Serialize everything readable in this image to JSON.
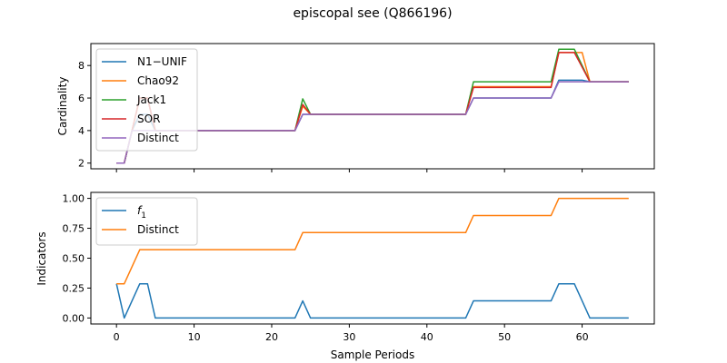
{
  "chart_data": {
    "title": "episcopal see (Q866196)",
    "xlabel": "Sample Periods",
    "xlim": [
      -3.3,
      69.3
    ],
    "xticks": [
      0,
      10,
      20,
      30,
      40,
      50,
      60
    ],
    "panels": [
      {
        "type": "line",
        "ylabel": "Cardinality",
        "ylim": [
          1.65,
          9.35
        ],
        "yticks": [
          2,
          4,
          6,
          8
        ],
        "ytick_labels": [
          "2",
          "4",
          "6",
          "8"
        ],
        "legend_position": "upper left",
        "series": [
          {
            "name": "N1−UNIF",
            "color": "#1f77b4",
            "points": [
              [
                0,
                2
              ],
              [
                1,
                2
              ],
              [
                2,
                4
              ],
              [
                3,
                5
              ],
              [
                4,
                5
              ],
              [
                5,
                4
              ],
              [
                23,
                4
              ],
              [
                24,
                5
              ],
              [
                45,
                5
              ],
              [
                46,
                6
              ],
              [
                56,
                6
              ],
              [
                57,
                7.1
              ],
              [
                60,
                7.1
              ],
              [
                61,
                7
              ],
              [
                66,
                7
              ]
            ]
          },
          {
            "name": "Chao92",
            "color": "#ff7f0e",
            "points": [
              [
                0,
                2
              ],
              [
                1,
                2
              ],
              [
                2,
                4
              ],
              [
                3,
                6
              ],
              [
                4,
                6
              ],
              [
                5,
                4
              ],
              [
                23,
                4
              ],
              [
                24,
                5.5
              ],
              [
                25,
                5
              ],
              [
                45,
                5
              ],
              [
                46,
                6.7
              ],
              [
                56,
                6.7
              ],
              [
                57,
                8.8
              ],
              [
                60,
                8.8
              ],
              [
                61,
                7
              ],
              [
                66,
                7
              ]
            ]
          },
          {
            "name": "Jack1",
            "color": "#2ca02c",
            "points": [
              [
                0,
                2
              ],
              [
                1,
                2
              ],
              [
                2,
                4
              ],
              [
                3,
                6
              ],
              [
                4,
                6
              ],
              [
                5,
                4
              ],
              [
                23,
                4
              ],
              [
                24,
                5.95
              ],
              [
                25,
                5
              ],
              [
                45,
                5
              ],
              [
                46,
                7
              ],
              [
                56,
                7
              ],
              [
                57,
                9
              ],
              [
                59,
                9
              ],
              [
                61,
                7
              ],
              [
                66,
                7
              ]
            ]
          },
          {
            "name": "SOR",
            "color": "#d62728",
            "points": [
              [
                0,
                2
              ],
              [
                1,
                2
              ],
              [
                2,
                4
              ],
              [
                3,
                6
              ],
              [
                4,
                6
              ],
              [
                5,
                4
              ],
              [
                23,
                4
              ],
              [
                24,
                5.6
              ],
              [
                25,
                5
              ],
              [
                45,
                5
              ],
              [
                46,
                6.65
              ],
              [
                56,
                6.65
              ],
              [
                57,
                8.8
              ],
              [
                59,
                8.8
              ],
              [
                61,
                7
              ],
              [
                66,
                7
              ]
            ]
          },
          {
            "name": "Distinct",
            "color": "#9467bd",
            "points": [
              [
                0,
                2
              ],
              [
                1,
                2
              ],
              [
                2,
                4
              ],
              [
                3,
                4
              ],
              [
                5,
                4
              ],
              [
                23,
                4
              ],
              [
                24,
                5
              ],
              [
                45,
                5
              ],
              [
                46,
                6
              ],
              [
                56,
                6
              ],
              [
                57,
                7
              ],
              [
                60,
                7
              ],
              [
                61,
                7
              ],
              [
                66,
                7
              ]
            ]
          }
        ]
      },
      {
        "type": "line",
        "ylabel": "Indicators",
        "ylim": [
          -0.05,
          1.05
        ],
        "yticks": [
          0,
          0.25,
          0.5,
          0.75,
          1.0
        ],
        "ytick_labels": [
          "0.00",
          "0.25",
          "0.50",
          "0.75",
          "1.00"
        ],
        "legend_position": "upper left",
        "series": [
          {
            "name": "f",
            "name_subscript": "1",
            "color": "#1f77b4",
            "points": [
              [
                0,
                0.286
              ],
              [
                1,
                0
              ],
              [
                3,
                0.286
              ],
              [
                4,
                0.286
              ],
              [
                5,
                0
              ],
              [
                23,
                0
              ],
              [
                24,
                0.143
              ],
              [
                25,
                0
              ],
              [
                45,
                0
              ],
              [
                46,
                0.143
              ],
              [
                56,
                0.143
              ],
              [
                57,
                0.286
              ],
              [
                59,
                0.286
              ],
              [
                61,
                0
              ],
              [
                66,
                0
              ]
            ]
          },
          {
            "name": "Distinct",
            "color": "#ff7f0e",
            "points": [
              [
                0,
                0.286
              ],
              [
                1,
                0.286
              ],
              [
                3,
                0.571
              ],
              [
                23,
                0.571
              ],
              [
                24,
                0.714
              ],
              [
                45,
                0.714
              ],
              [
                46,
                0.857
              ],
              [
                56,
                0.857
              ],
              [
                57,
                1.0
              ],
              [
                66,
                1.0
              ]
            ]
          }
        ]
      }
    ]
  }
}
